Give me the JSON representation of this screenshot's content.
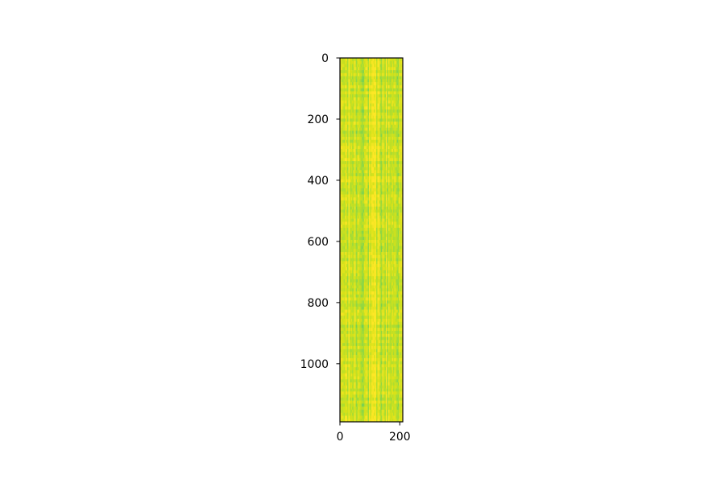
{
  "chart_data": {
    "type": "heatmap",
    "title": "",
    "xlabel": "",
    "ylabel": "",
    "n_cols": 210,
    "n_rows": 1190,
    "xlim": [
      0,
      210
    ],
    "ylim": [
      1190,
      0
    ],
    "x_ticks": [
      0,
      200
    ],
    "y_ticks": [
      0,
      200,
      400,
      600,
      800,
      1000
    ],
    "x_tick_labels": [
      "0",
      "200"
    ],
    "y_tick_labels": [
      "0",
      "200",
      "400",
      "600",
      "800",
      "1000"
    ],
    "colormap": "viridis-upper",
    "colors": {
      "yellow": "#fde725",
      "yellow_green": "#d8e219",
      "lime": "#b5de2b",
      "green": "#8fd744",
      "teal_green": "#5ec962",
      "teal": "#35b779",
      "frame": "#000000"
    },
    "value_range": [
      0.55,
      1.0
    ],
    "grid": false,
    "legend": "none"
  }
}
